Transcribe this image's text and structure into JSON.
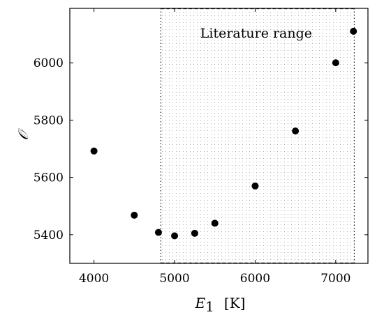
{
  "chart_data": {
    "type": "scatter",
    "xlabel": "E",
    "xlabel_sub": "1",
    "xlabel_unit": "[K]",
    "ylabel": "𝒪",
    "xlim": [
      3700,
      7400
    ],
    "ylim": [
      5300,
      6190
    ],
    "xticks": [
      4000,
      5000,
      6000,
      7000
    ],
    "yticks": [
      5400,
      5600,
      5800,
      6000
    ],
    "grid": false,
    "annotation": {
      "text": "Literature range",
      "x_range": [
        4830,
        7230
      ]
    },
    "points": [
      {
        "x": 4000,
        "y": 5692
      },
      {
        "x": 4500,
        "y": 5468
      },
      {
        "x": 4800,
        "y": 5408
      },
      {
        "x": 5000,
        "y": 5396
      },
      {
        "x": 5250,
        "y": 5405
      },
      {
        "x": 5500,
        "y": 5440
      },
      {
        "x": 6000,
        "y": 5570
      },
      {
        "x": 6500,
        "y": 5762
      },
      {
        "x": 7000,
        "y": 6000
      },
      {
        "x": 7220,
        "y": 6110
      }
    ],
    "marker_color": "#000000"
  }
}
